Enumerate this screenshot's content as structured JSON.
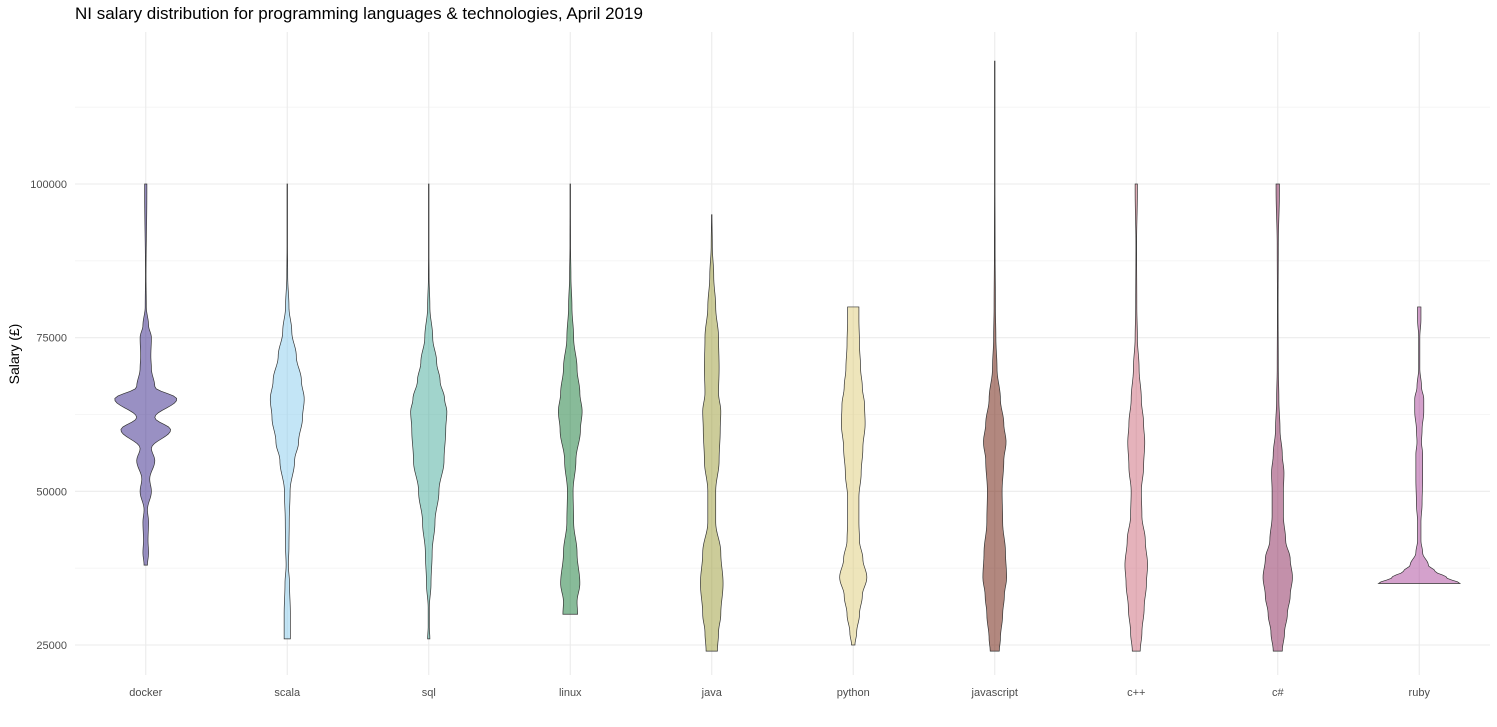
{
  "chart_data": {
    "type": "violin",
    "title": "NI salary distribution for programming languages & technologies, April 2019",
    "xlabel": "",
    "ylabel": "Salary (£)",
    "ylim": [
      20000,
      124000
    ],
    "yticks": [
      "25000",
      "50000",
      "75000",
      "100000"
    ],
    "grid": true,
    "series": [
      {
        "name": "docker",
        "color": "#332288",
        "min": 38000,
        "max": 100000,
        "profile": [
          [
            38000,
            0.03
          ],
          [
            40000,
            0.05
          ],
          [
            42000,
            0.04
          ],
          [
            45000,
            0.05
          ],
          [
            47000,
            0.03
          ],
          [
            50000,
            0.1
          ],
          [
            52000,
            0.07
          ],
          [
            55000,
            0.16
          ],
          [
            57000,
            0.1
          ],
          [
            60000,
            0.44
          ],
          [
            62000,
            0.16
          ],
          [
            65000,
            0.55
          ],
          [
            67000,
            0.16
          ],
          [
            70000,
            0.1
          ],
          [
            72000,
            0.09
          ],
          [
            75000,
            0.1
          ],
          [
            77000,
            0.05
          ],
          [
            80000,
            0.01
          ],
          [
            85000,
            0.005
          ],
          [
            99000,
            0.02
          ],
          [
            100000,
            0.02
          ]
        ]
      },
      {
        "name": "scala",
        "color": "#88CCEE",
        "min": 26000,
        "max": 100000,
        "profile": [
          [
            26000,
            0.055
          ],
          [
            30000,
            0.055
          ],
          [
            35000,
            0.04
          ],
          [
            38000,
            0.02
          ],
          [
            41000,
            0.03
          ],
          [
            45000,
            0.035
          ],
          [
            50000,
            0.05
          ],
          [
            55000,
            0.13
          ],
          [
            58000,
            0.2
          ],
          [
            62000,
            0.27
          ],
          [
            65000,
            0.3
          ],
          [
            68000,
            0.25
          ],
          [
            72000,
            0.16
          ],
          [
            76000,
            0.08
          ],
          [
            80000,
            0.03
          ],
          [
            85000,
            0.008
          ],
          [
            90000,
            0.004
          ],
          [
            100000,
            0.004
          ]
        ]
      },
      {
        "name": "sql",
        "color": "#44AA99",
        "min": 26000,
        "max": 100000,
        "profile": [
          [
            26000,
            0.02
          ],
          [
            28000,
            0.01
          ],
          [
            31000,
            0.01
          ],
          [
            35000,
            0.04
          ],
          [
            40000,
            0.06
          ],
          [
            45000,
            0.11
          ],
          [
            50000,
            0.18
          ],
          [
            55000,
            0.27
          ],
          [
            60000,
            0.3
          ],
          [
            63000,
            0.32
          ],
          [
            65000,
            0.28
          ],
          [
            68000,
            0.2
          ],
          [
            71000,
            0.14
          ],
          [
            75000,
            0.07
          ],
          [
            80000,
            0.02
          ],
          [
            85000,
            0.006
          ],
          [
            90000,
            0.003
          ],
          [
            100000,
            0.003
          ]
        ]
      },
      {
        "name": "linux",
        "color": "#117733",
        "min": 30000,
        "max": 100000,
        "profile": [
          [
            30000,
            0.13
          ],
          [
            32000,
            0.12
          ],
          [
            35000,
            0.17
          ],
          [
            40000,
            0.12
          ],
          [
            45000,
            0.06
          ],
          [
            50000,
            0.05
          ],
          [
            55000,
            0.1
          ],
          [
            60000,
            0.18
          ],
          [
            63000,
            0.21
          ],
          [
            66000,
            0.17
          ],
          [
            70000,
            0.12
          ],
          [
            75000,
            0.06
          ],
          [
            80000,
            0.03
          ],
          [
            85000,
            0.012
          ],
          [
            90000,
            0.005
          ],
          [
            100000,
            0.003
          ]
        ]
      },
      {
        "name": "java",
        "color": "#999933",
        "min": 24000,
        "max": 95000,
        "profile": [
          [
            24000,
            0.1
          ],
          [
            27000,
            0.12
          ],
          [
            30000,
            0.16
          ],
          [
            35000,
            0.2
          ],
          [
            40000,
            0.16
          ],
          [
            45000,
            0.07
          ],
          [
            50000,
            0.07
          ],
          [
            55000,
            0.13
          ],
          [
            60000,
            0.15
          ],
          [
            63000,
            0.16
          ],
          [
            66000,
            0.12
          ],
          [
            70000,
            0.13
          ],
          [
            75000,
            0.12
          ],
          [
            80000,
            0.07
          ],
          [
            85000,
            0.035
          ],
          [
            90000,
            0.01
          ],
          [
            95000,
            0.004
          ]
        ]
      },
      {
        "name": "python",
        "color": "#DDCC77",
        "min": 25000,
        "max": 80000,
        "profile": [
          [
            25000,
            0.03
          ],
          [
            27000,
            0.06
          ],
          [
            30000,
            0.11
          ],
          [
            33000,
            0.16
          ],
          [
            36000,
            0.24
          ],
          [
            39000,
            0.17
          ],
          [
            42000,
            0.11
          ],
          [
            45000,
            0.1
          ],
          [
            49000,
            0.1
          ],
          [
            53000,
            0.14
          ],
          [
            57000,
            0.17
          ],
          [
            61000,
            0.21
          ],
          [
            64000,
            0.2
          ],
          [
            67000,
            0.16
          ],
          [
            70000,
            0.13
          ],
          [
            74000,
            0.11
          ],
          [
            78000,
            0.1
          ],
          [
            80000,
            0.1
          ]
        ]
      },
      {
        "name": "javascript",
        "color": "#661100",
        "min": 24000,
        "max": 120000,
        "profile": [
          [
            24000,
            0.08
          ],
          [
            26000,
            0.1
          ],
          [
            30000,
            0.14
          ],
          [
            33000,
            0.17
          ],
          [
            36000,
            0.21
          ],
          [
            40000,
            0.19
          ],
          [
            45000,
            0.14
          ],
          [
            50000,
            0.13
          ],
          [
            55000,
            0.16
          ],
          [
            58000,
            0.2
          ],
          [
            61000,
            0.16
          ],
          [
            65000,
            0.1
          ],
          [
            70000,
            0.04
          ],
          [
            75000,
            0.02
          ],
          [
            80000,
            0.012
          ],
          [
            90000,
            0.006
          ],
          [
            100000,
            0.004
          ],
          [
            110000,
            0.003
          ],
          [
            120000,
            0.002
          ]
        ]
      },
      {
        "name": "c++",
        "color": "#CC6677",
        "min": 24000,
        "max": 100000,
        "profile": [
          [
            24000,
            0.07
          ],
          [
            27000,
            0.1
          ],
          [
            31000,
            0.14
          ],
          [
            35000,
            0.18
          ],
          [
            38000,
            0.2
          ],
          [
            42000,
            0.16
          ],
          [
            46000,
            0.1
          ],
          [
            50000,
            0.09
          ],
          [
            54000,
            0.13
          ],
          [
            58000,
            0.15
          ],
          [
            61000,
            0.13
          ],
          [
            65000,
            0.09
          ],
          [
            70000,
            0.05
          ],
          [
            75000,
            0.02
          ],
          [
            80000,
            0.01
          ],
          [
            90000,
            0.006
          ],
          [
            99000,
            0.02
          ],
          [
            100000,
            0.02
          ]
        ]
      },
      {
        "name": "c#",
        "color": "#882255",
        "min": 24000,
        "max": 100000,
        "profile": [
          [
            24000,
            0.08
          ],
          [
            27000,
            0.12
          ],
          [
            30000,
            0.17
          ],
          [
            33000,
            0.22
          ],
          [
            36000,
            0.26
          ],
          [
            39000,
            0.22
          ],
          [
            42000,
            0.14
          ],
          [
            46000,
            0.1
          ],
          [
            50000,
            0.1
          ],
          [
            53000,
            0.11
          ],
          [
            56000,
            0.08
          ],
          [
            60000,
            0.04
          ],
          [
            65000,
            0.02
          ],
          [
            70000,
            0.01
          ],
          [
            80000,
            0.006
          ],
          [
            90000,
            0.01
          ],
          [
            99000,
            0.03
          ],
          [
            100000,
            0.03
          ]
        ]
      },
      {
        "name": "ruby",
        "color": "#AA4499",
        "min": 35000,
        "max": 80000,
        "profile": [
          [
            35000,
            0.72
          ],
          [
            36000,
            0.48
          ],
          [
            37000,
            0.28
          ],
          [
            38000,
            0.16
          ],
          [
            40000,
            0.06
          ],
          [
            42000,
            0.03
          ],
          [
            45000,
            0.03
          ],
          [
            48000,
            0.05
          ],
          [
            52000,
            0.06
          ],
          [
            56000,
            0.06
          ],
          [
            58000,
            0.04
          ],
          [
            60000,
            0.05
          ],
          [
            63000,
            0.08
          ],
          [
            65000,
            0.08
          ],
          [
            67000,
            0.04
          ],
          [
            70000,
            0.01
          ],
          [
            75000,
            0.01
          ],
          [
            78000,
            0.03
          ],
          [
            80000,
            0.03
          ]
        ]
      }
    ]
  }
}
